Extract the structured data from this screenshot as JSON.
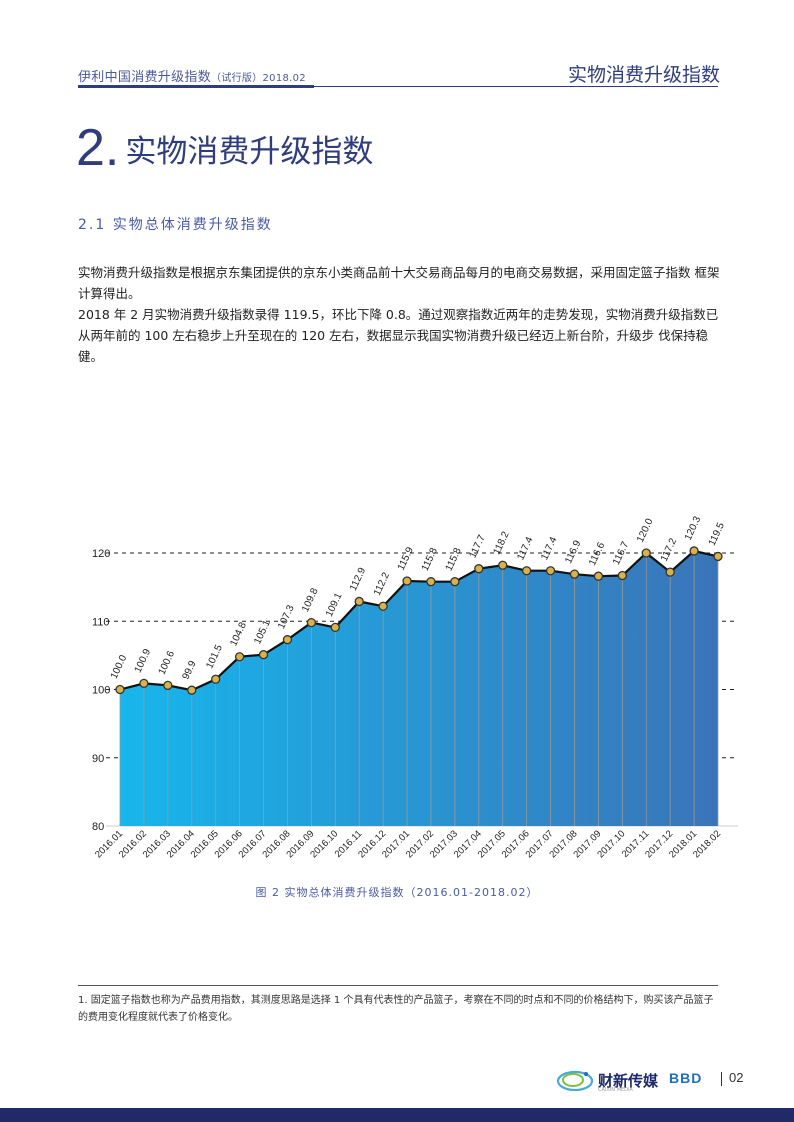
{
  "header": {
    "left_main": "伊利中国消费升级指数",
    "left_small": "（试行版）2018.02",
    "right": "实物消费升级指数"
  },
  "section": {
    "number": "2.",
    "title": "实物消费升级指数"
  },
  "subsection": "2.1 实物总体消费升级指数",
  "paragraphs": [
    "实物消费升级指数是根据京东集团提供的京东小类商品前十大交易商品每月的电商交易数据，采用固定篮子指数 框架计算得出。",
    "2018 年 2 月实物消费升级指数录得 119.5，环比下降 0.8。通过观察指数近两年的走势发现，实物消费升级指数已从两年前的 100 左右稳步上升至现在的 120 左右，数据显示我国实物消费升级已经迈上新台阶，升级步 伐保持稳健。"
  ],
  "chart_data": {
    "type": "area",
    "categories": [
      "2016.01",
      "2016.02",
      "2016.03",
      "2016.04",
      "2016.05",
      "2016.06",
      "2016.07",
      "2016.08",
      "2016.09",
      "2016.10",
      "2016.11",
      "2016.12",
      "2017.01",
      "2017.02",
      "2017.03",
      "2017.04",
      "2017.05",
      "2017.06",
      "2017.07",
      "2017.08",
      "2017.09",
      "2017.10",
      "2017.11",
      "2017.12",
      "2018.01",
      "2018.02"
    ],
    "values": [
      100.0,
      100.9,
      100.6,
      99.9,
      101.5,
      104.8,
      105.1,
      107.3,
      109.8,
      109.1,
      112.9,
      112.2,
      115.9,
      115.8,
      115.8,
      117.7,
      118.2,
      117.4,
      117.4,
      116.9,
      116.6,
      116.7,
      120.0,
      117.2,
      120.3,
      119.5
    ],
    "value_labels": [
      "100.0",
      "100.9",
      "100.6",
      "99.9",
      "101.5",
      "104.8",
      "105.1",
      "107.3",
      "109.8",
      "109.1",
      "112.9",
      "112.2",
      "115.9",
      "115.8",
      "115.8",
      "117.7",
      "118.2",
      "117.4",
      "117.4",
      "116.9",
      "116.6",
      "116.7",
      "120.0",
      "117.2",
      "120.3",
      "119.5"
    ],
    "yticks": [
      "80",
      "90",
      "100",
      "110",
      "120"
    ],
    "ylim": [
      80,
      120
    ],
    "grid": "dashed horizontal",
    "fill_gradient": [
      "#17b6ec",
      "#3a74b8"
    ],
    "line_color": "#111111",
    "marker_color": "#d8b24a"
  },
  "caption": "图 2 实物总体消费升级指数（2016.01-2018.02）",
  "footnote": "1. 固定篮子指数也称为产品费用指数，其测度思路是选择 1 个具有代表性的产品篮子，考察在不同的时点和不同的价格结构下，购买该产品篮子的费用变化程度就代表了价格变化。",
  "footer": {
    "logo_text": "财新传媒",
    "logo_sub": "CAIXIN MEDIA",
    "brand2": "BBD",
    "page": "02"
  }
}
